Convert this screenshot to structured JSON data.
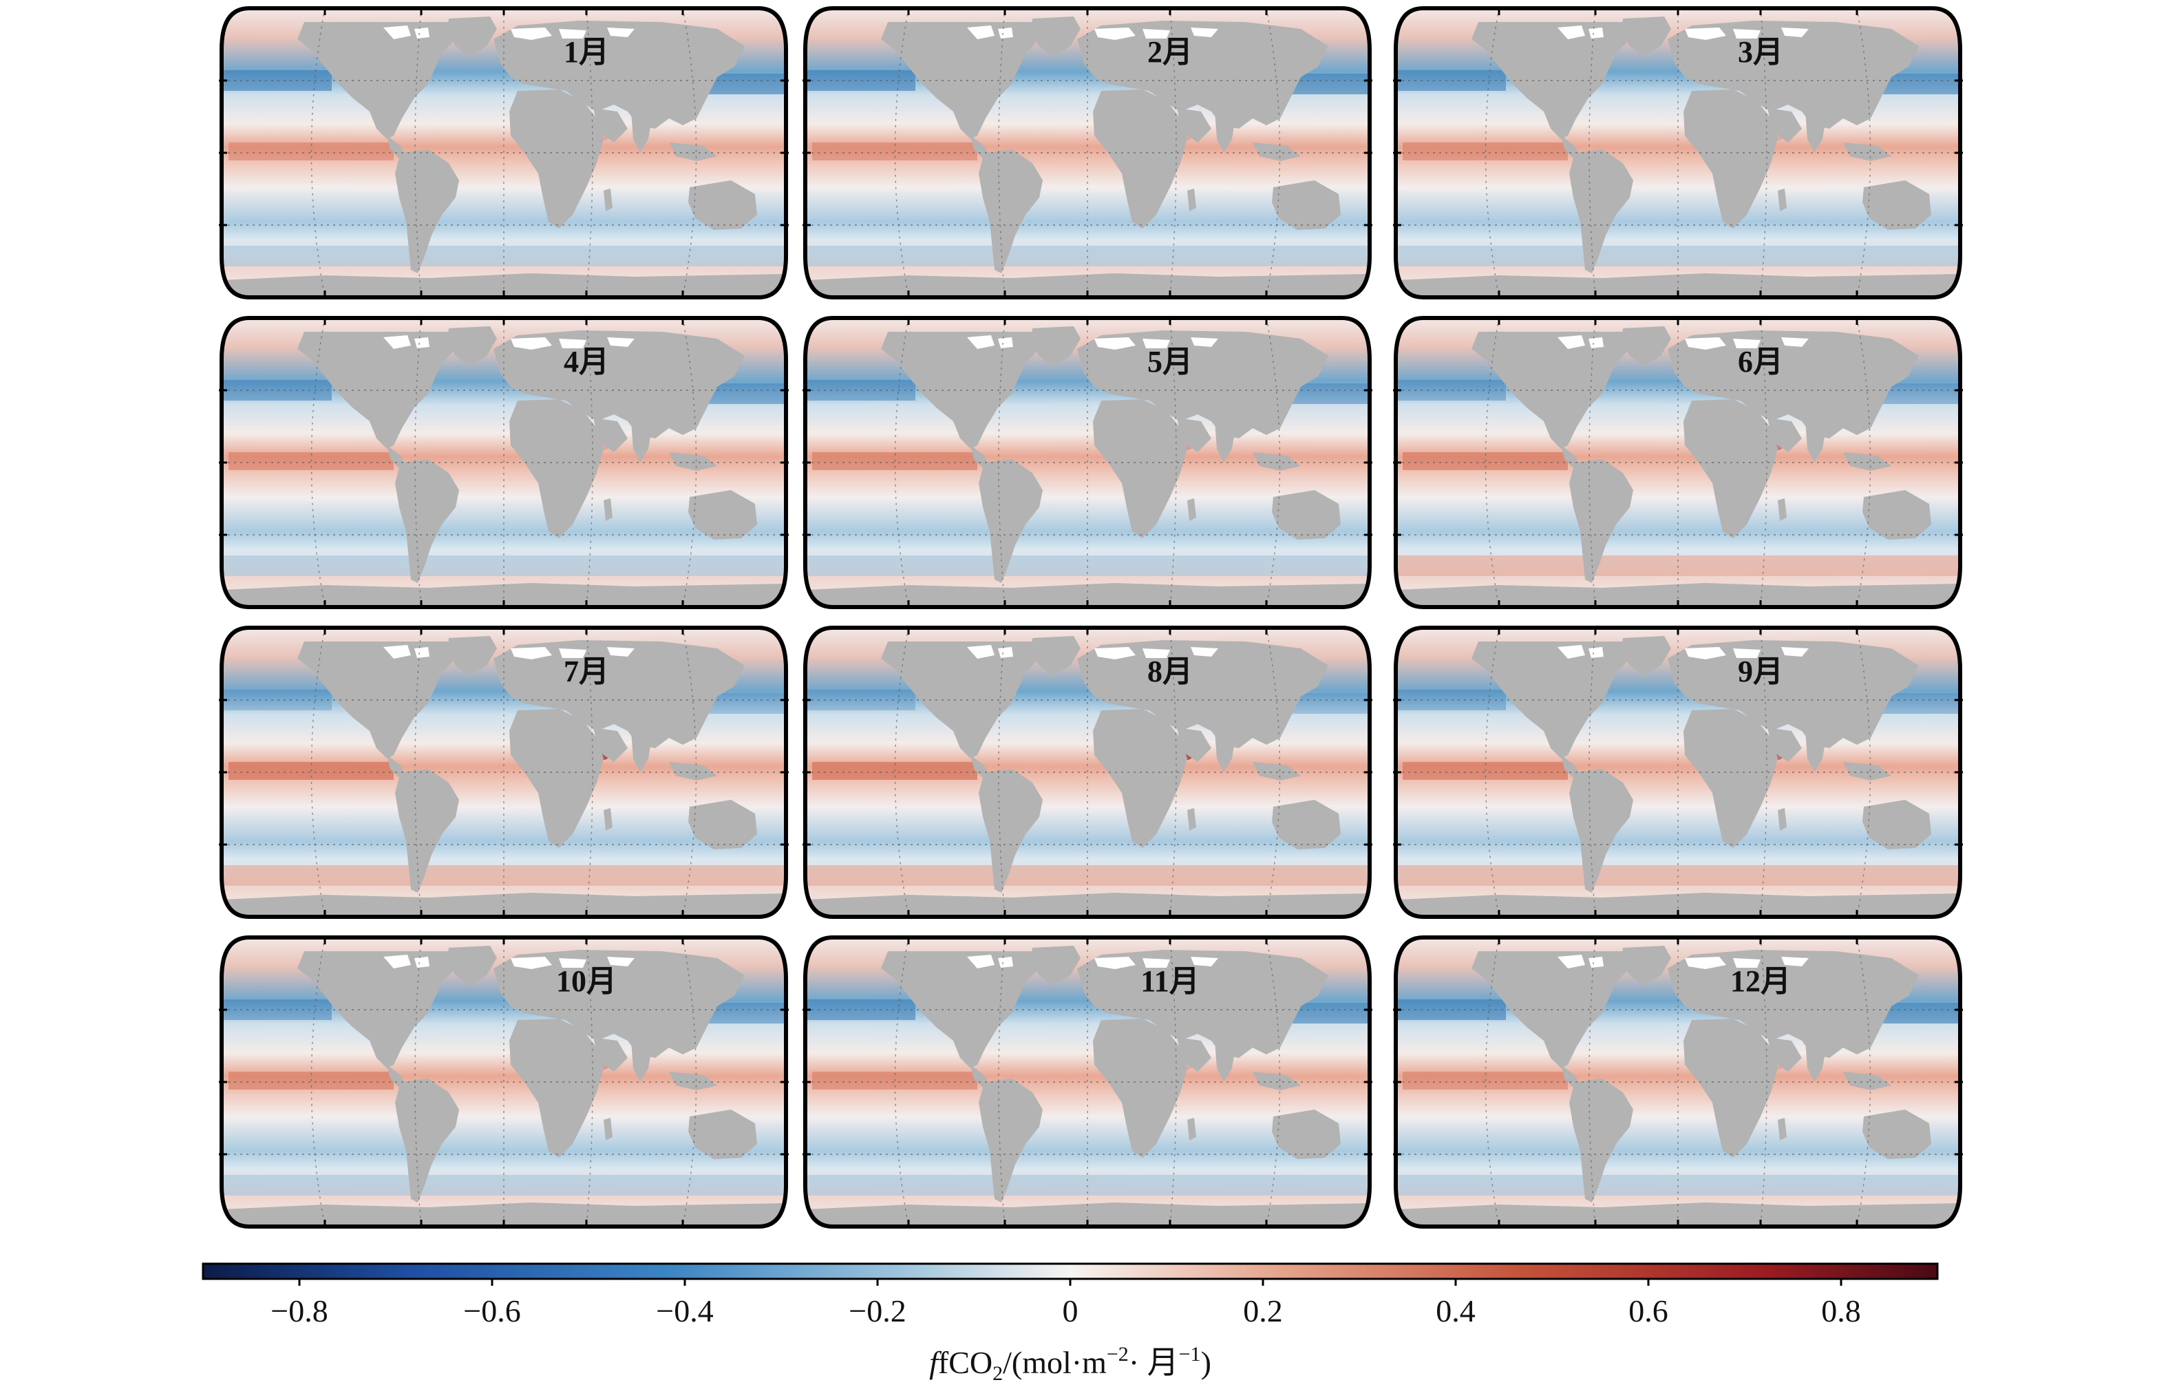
{
  "panels": [
    {
      "month": "1月",
      "idx": 0
    },
    {
      "month": "2月",
      "idx": 1
    },
    {
      "month": "3月",
      "idx": 2
    },
    {
      "month": "4月",
      "idx": 3
    },
    {
      "month": "5月",
      "idx": 4
    },
    {
      "month": "6月",
      "idx": 5
    },
    {
      "month": "7月",
      "idx": 6
    },
    {
      "month": "8月",
      "idx": 7
    },
    {
      "month": "9月",
      "idx": 8
    },
    {
      "month": "10月",
      "idx": 9
    },
    {
      "month": "11月",
      "idx": 10
    },
    {
      "month": "12月",
      "idx": 11
    }
  ],
  "colorbar": {
    "min": -0.9,
    "max": 0.9,
    "ticks": [
      "−0.8",
      "−0.6",
      "−0.4",
      "−0.2",
      "0",
      "0.2",
      "0.4",
      "0.6",
      "0.8"
    ],
    "tick_values": [
      -0.8,
      -0.6,
      -0.4,
      -0.2,
      0,
      0.2,
      0.4,
      0.6,
      0.8
    ],
    "title_main": "fCO",
    "title_sub": "2",
    "title_rest": "/(mol·m",
    "title_exp1": "−2",
    "title_mid": "· 月",
    "title_exp2": "−1",
    "title_end": ")",
    "colormap": [
      "#0b1c4a",
      "#1f4fa3",
      "#3c86c4",
      "#9cc3dc",
      "#f7f4f2",
      "#e6a48d",
      "#c4533a",
      "#9b1c22",
      "#4a0a14"
    ]
  },
  "colors": {
    "land": "#b3b3b3",
    "ice": "#ffffff",
    "frame": "#000000",
    "ocean_neutral": "#f5f2f1"
  }
}
